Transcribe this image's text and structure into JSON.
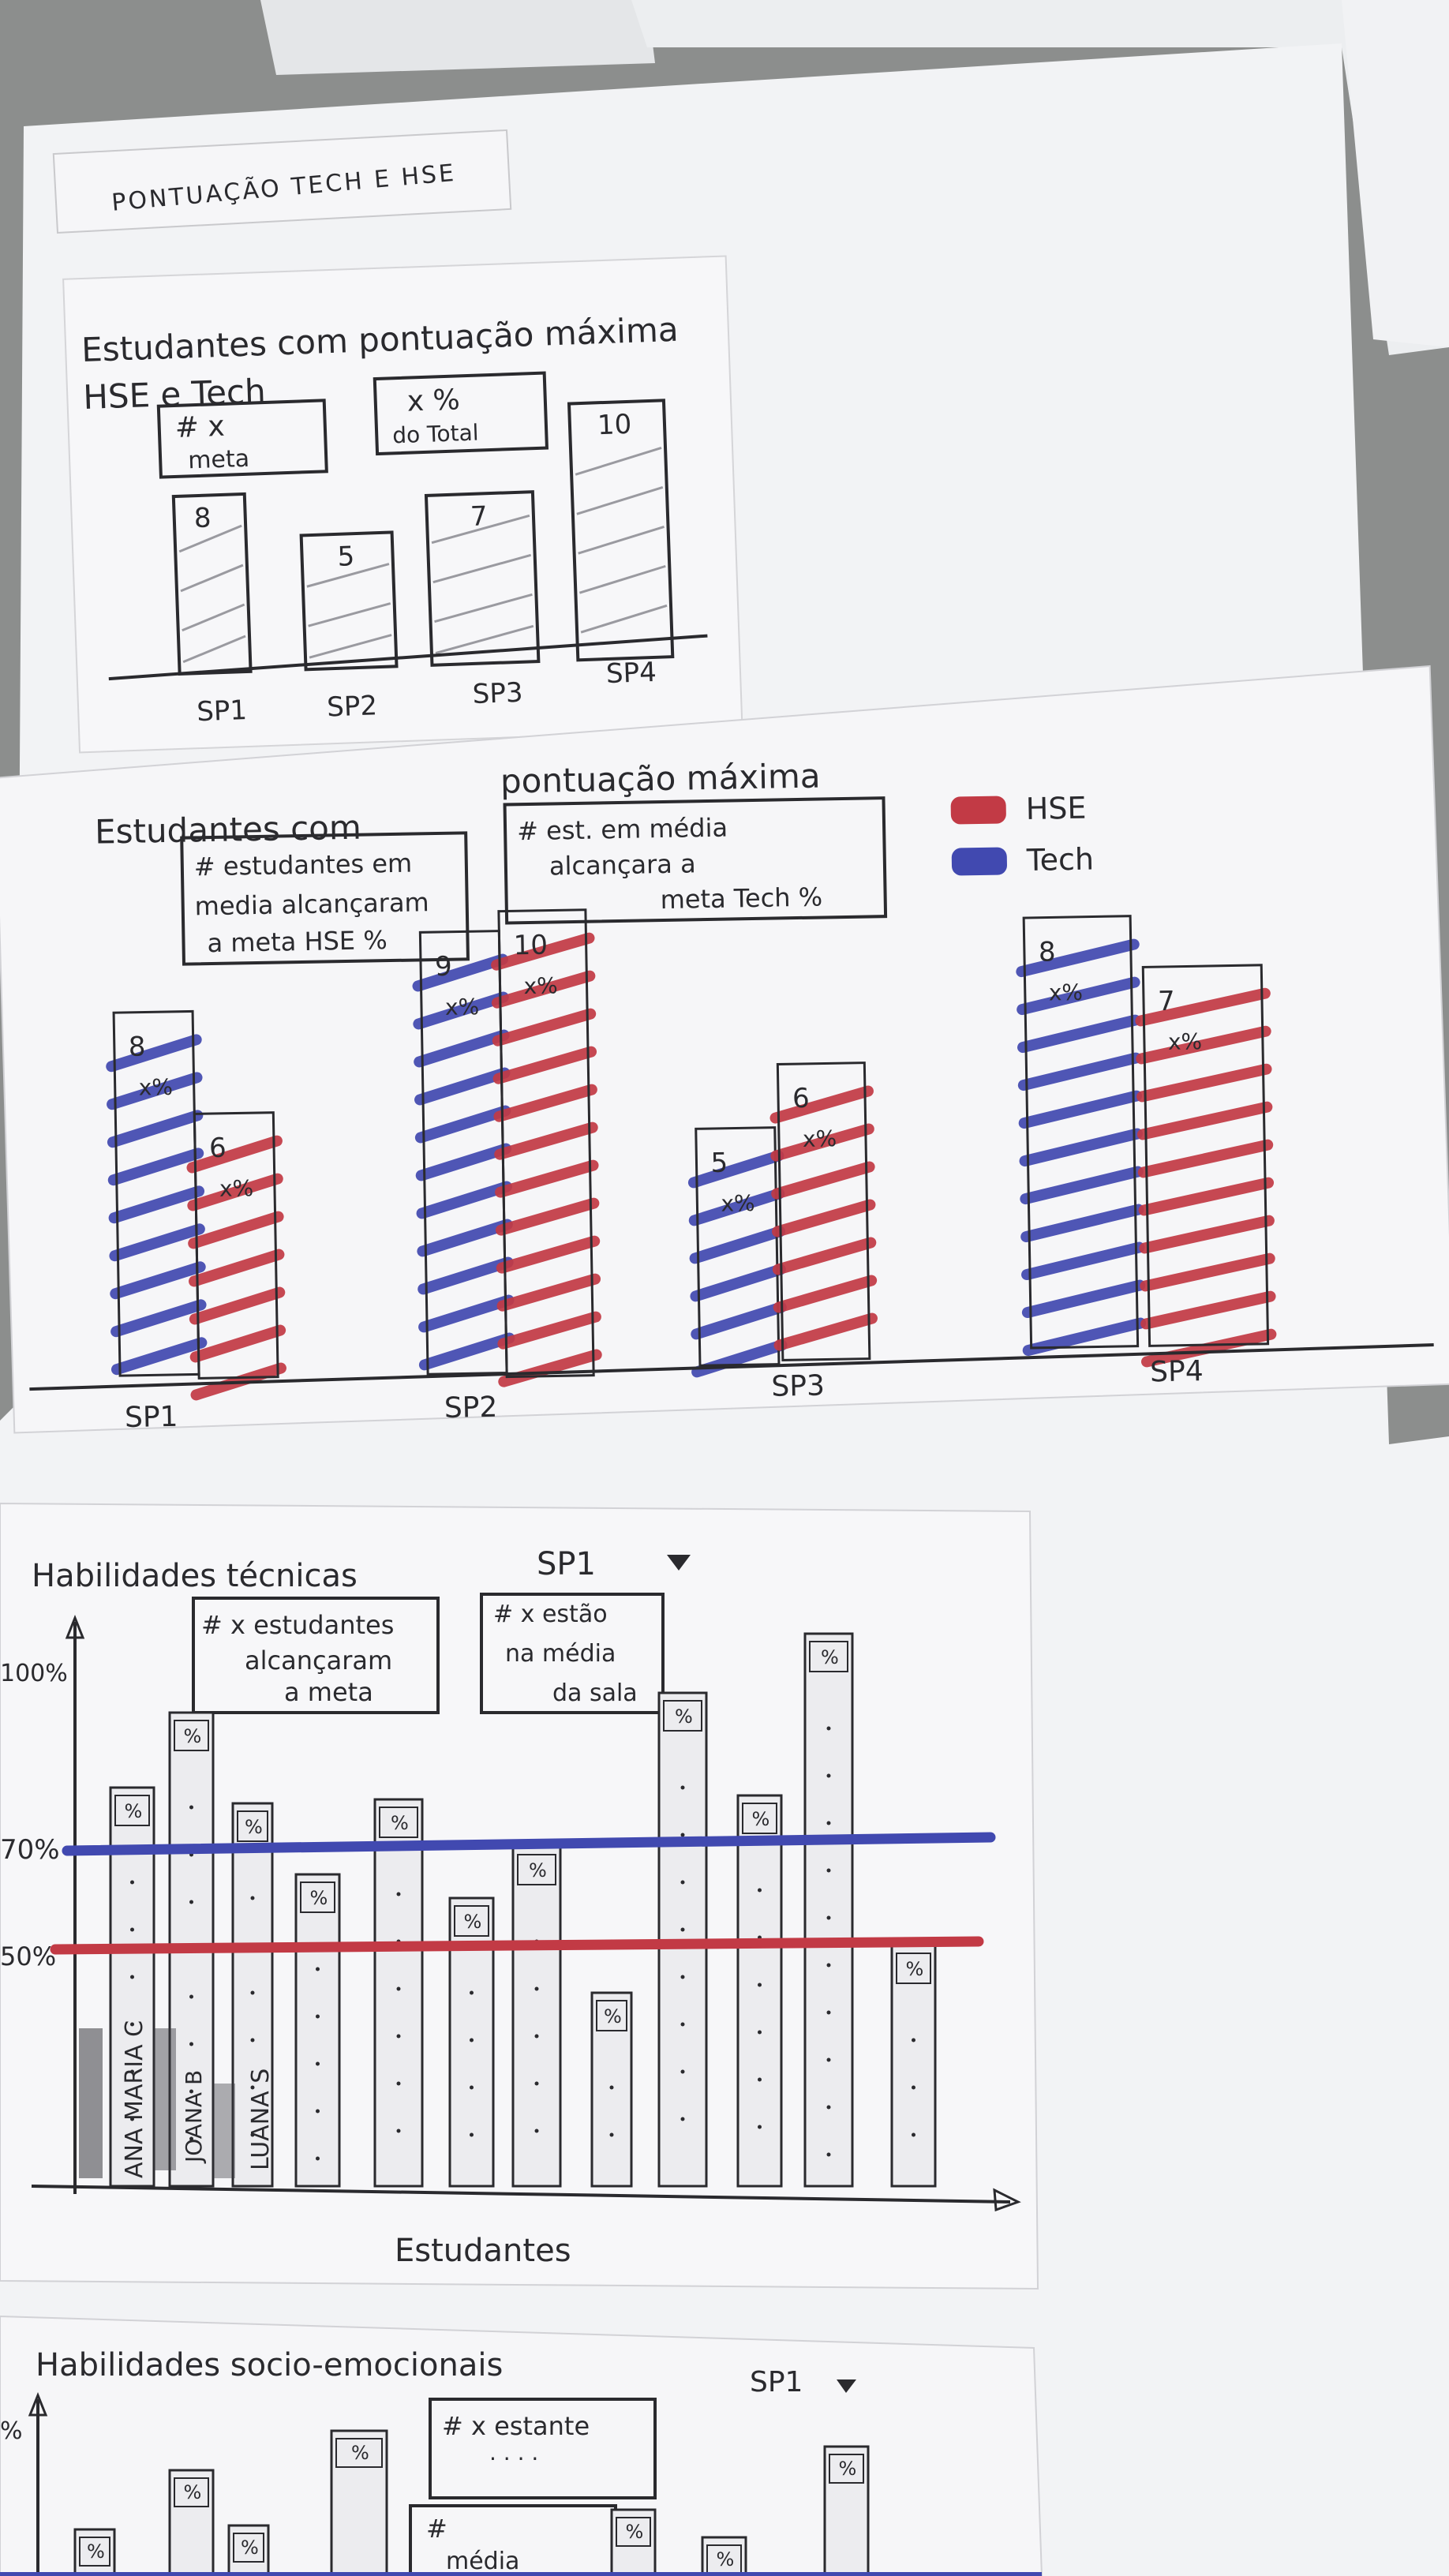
{
  "colors": {
    "background": "#8c8e8d",
    "paper": "#f4f4f6",
    "pencil": "#2a2a2e",
    "hse_red": "#c23a45",
    "tech_blue": "#4149b0"
  },
  "sheet_top": {
    "title": "PONTUAÇÃO TECH E HSE"
  },
  "sketch1": {
    "title_line1": "Estudantes com pontuação máxima",
    "title_line2": "HSE e Tech",
    "callout_a_line1": "# x",
    "callout_a_line2": "meta",
    "callout_b_line1": "x %",
    "callout_b_line2": "do Total",
    "bar_labels": [
      "8",
      "5",
      "7",
      "10"
    ],
    "categories": [
      "SP1",
      "SP2",
      "SP3",
      "SP4"
    ]
  },
  "sketch2": {
    "title_left": "Estudantes com",
    "title_right": "pontuação máxima",
    "callout_hse_lines": [
      "# estudantes em",
      "media alcançaram",
      "a meta HSE %"
    ],
    "callout_tech_lines": [
      "# est. em média",
      "alcançara a",
      "meta Tech %"
    ],
    "legend": [
      {
        "name": "HSE",
        "color": "#c23a45"
      },
      {
        "name": "Tech",
        "color": "#4149b0"
      }
    ],
    "categories": [
      "SP1",
      "SP2",
      "SP3",
      "SP4"
    ],
    "tech_labels": [
      "8",
      "9",
      "5",
      "8"
    ],
    "hse_labels": [
      "6",
      "10",
      "6",
      "7"
    ],
    "pct_label": "x%"
  },
  "sketch3": {
    "title": "Habilidades técnicas",
    "selector": "SP1",
    "callout_a_lines": [
      "# x estudantes",
      "alcançaram",
      "a meta"
    ],
    "callout_b_lines": [
      "# x estão",
      "na média",
      "da sala"
    ],
    "y_ticks": [
      "100%",
      "70%",
      "50%"
    ],
    "student_names": [
      "",
      "ANA MARIA C",
      "",
      "JOANA B",
      "LUANA S"
    ],
    "bar_pct": "%",
    "xlabel": "Estudantes"
  },
  "sketch4": {
    "title": "Habilidades socio-emocionais",
    "selector": "SP1",
    "callout_a_line1": "# x estante",
    "callout_a_line2": "· · · ·",
    "callout_b_line1": "#",
    "callout_b_line2": "média",
    "y_tick": "%",
    "bar_pct": "%"
  }
}
